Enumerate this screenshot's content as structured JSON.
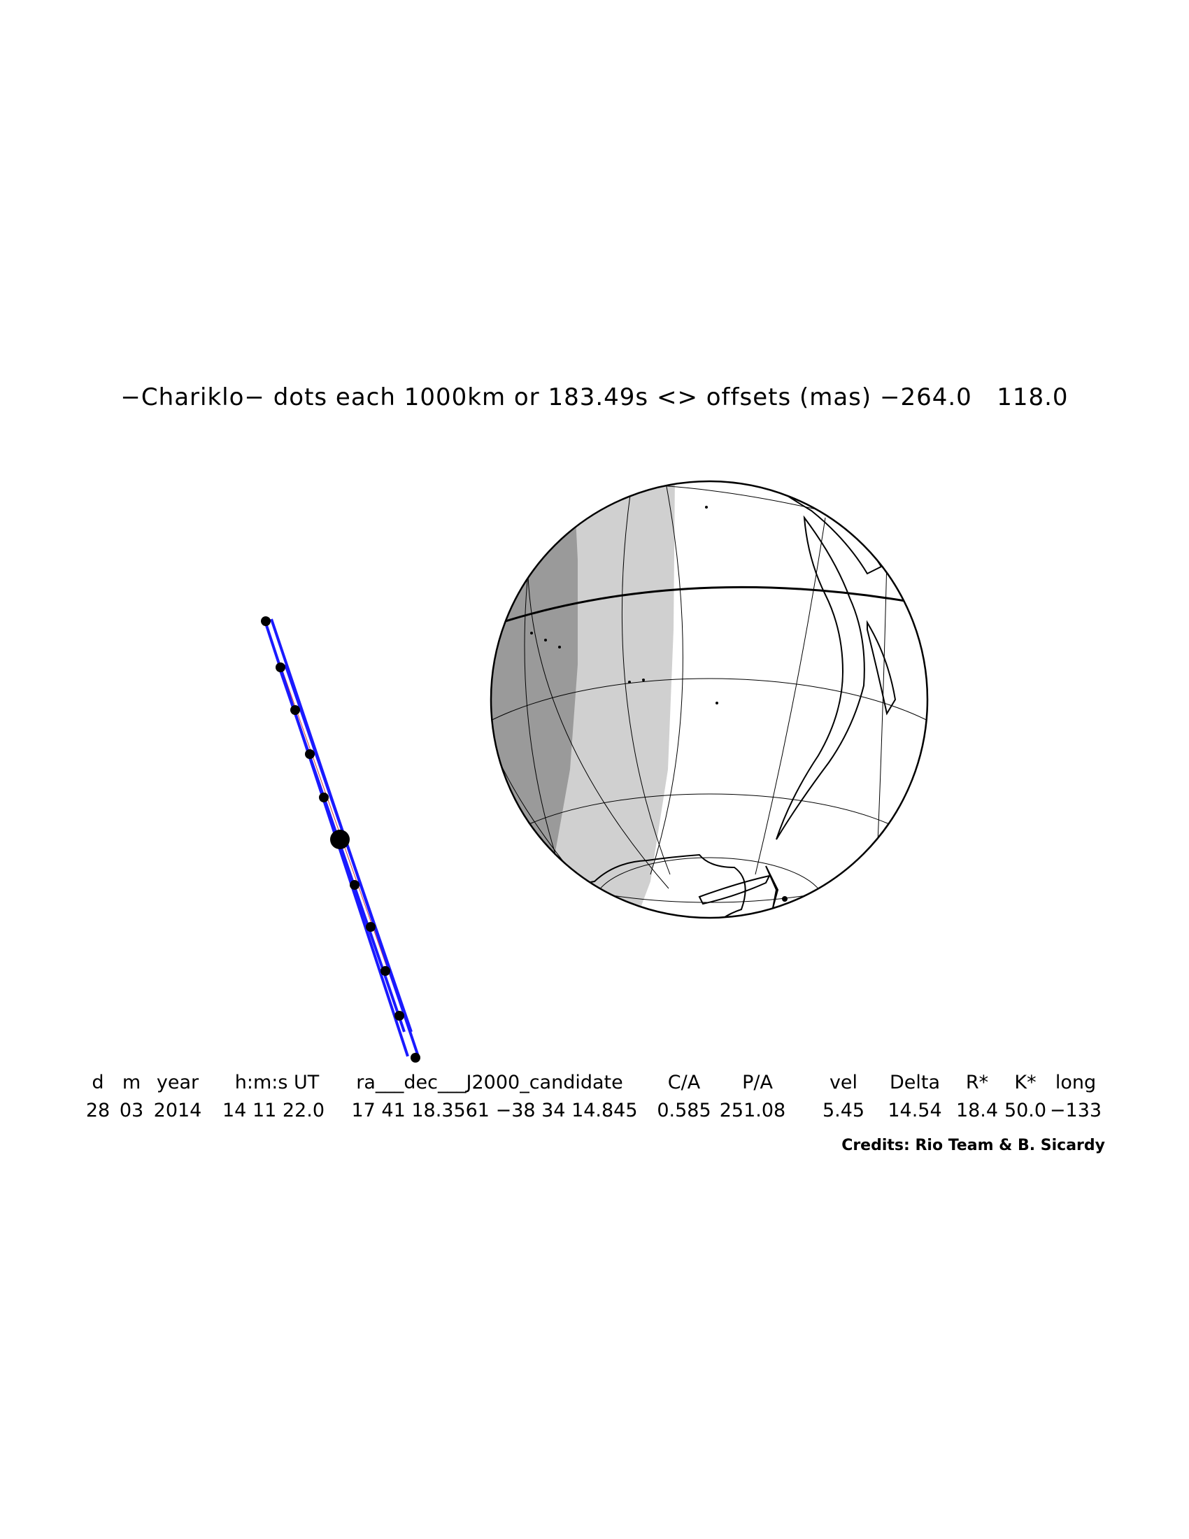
{
  "title": "−Chariklo− dots each 1000km or 183.49s <> offsets (mas) −264.0   118.0",
  "table": {
    "headers": [
      "d",
      "m",
      "year",
      "h:m:s UT",
      "ra___dec___J2000_candidate",
      "C/A",
      "P/A",
      "vel",
      "Delta",
      "R*",
      "K*",
      "long"
    ],
    "values": [
      "28",
      "03",
      "2014",
      "14 11 22.0",
      "17 41 18.3561 −38 34 14.845",
      "0.585",
      "251.08",
      "5.45",
      "14.54",
      "18.4",
      "50.0",
      "−133"
    ]
  },
  "credits": "Credits: Rio Team & B. Sicardy",
  "colors": {
    "night": "#9a9a9a",
    "twilight": "#d0d0d0",
    "day": "#ffffff",
    "track": "#1a1aff",
    "centerline": "#d04040",
    "coast": "#000000"
  }
}
